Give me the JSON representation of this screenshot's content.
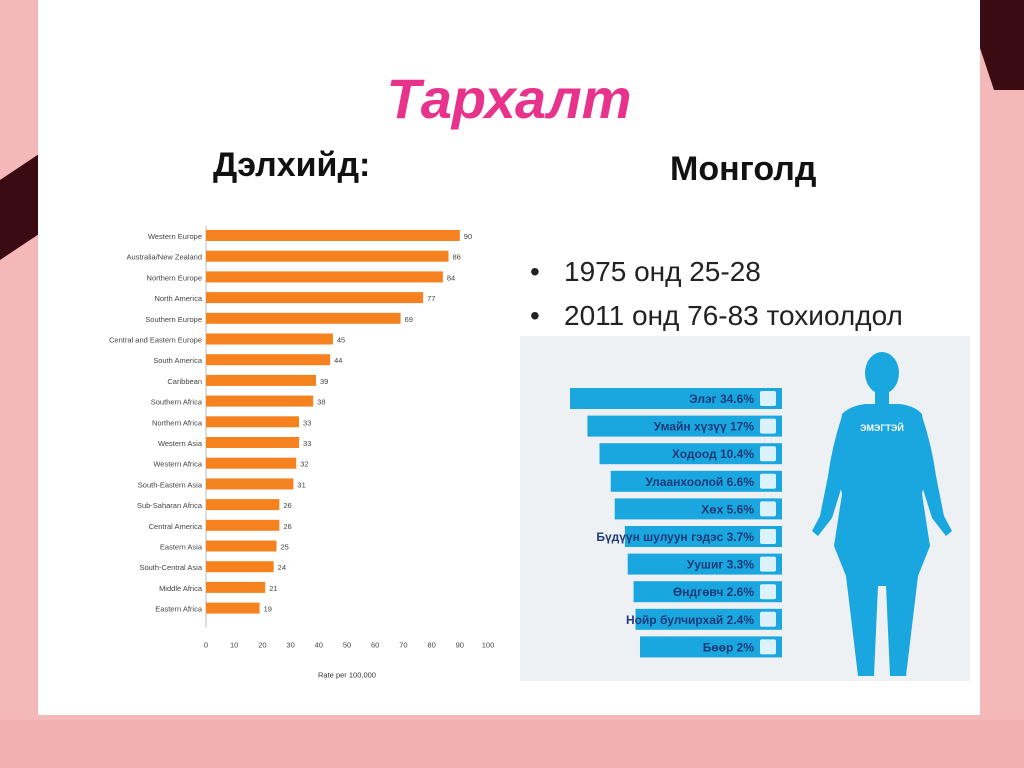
{
  "slide": {
    "title": "Тархалт",
    "left_heading": "Дэлхийд:",
    "right_heading": "Монголд",
    "bullets": [
      "1975 онд 25-28",
      "2011 онд 76-83 тохиолдол"
    ]
  },
  "colors": {
    "title": "#e8338c",
    "bar": "#f5821f",
    "mn_bar": "#1aa7e0",
    "background": "#f4b8b8",
    "corner": "#3a0b12"
  },
  "chart_data": [
    {
      "type": "bar",
      "orientation": "horizontal",
      "categories": [
        "Western Europe",
        "Australia/New Zealand",
        "Northern Europe",
        "North America",
        "Southern Europe",
        "Central and Eastern Europe",
        "South America",
        "Caribbean",
        "Southern Africa",
        "Northern Africa",
        "Western Asia",
        "Western Africa",
        "South-Eastern Asia",
        "Sub-Saharan Africa",
        "Central America",
        "Eastern Asia",
        "South-Central Asia",
        "Middle Africa",
        "Eastern Africa"
      ],
      "values": [
        90,
        86,
        84,
        77,
        69,
        45,
        44,
        39,
        38,
        33,
        33,
        32,
        31,
        26,
        26,
        25,
        24,
        21,
        19
      ],
      "xlabel": "Rate per 100,000",
      "xlim": [
        0,
        100
      ],
      "xticks": [
        0,
        10,
        20,
        30,
        40,
        50,
        60,
        70,
        80,
        90,
        100
      ],
      "grid": false,
      "legend": "none"
    },
    {
      "type": "bar",
      "orientation": "horizontal",
      "labels": [
        "Элэг 34.6%",
        "Умайн хүзүү 17%",
        "Ходоод 10.4%",
        "Улаанхоолой 6.6%",
        "Хөх 5.6%",
        "Бүдүүн шулуун гэдэс 3.7%",
        "Уушиг 3.3%",
        "Өндгөвч 2.6%",
        "Нойр булчирхай 2.4%",
        "Бөөр 2%"
      ],
      "values": [
        34.6,
        17,
        10.4,
        6.6,
        5.6,
        3.7,
        3.3,
        2.6,
        2.4,
        2
      ],
      "figure_label": "ЭМЭГТЭЙ",
      "icons": [
        "liver-icon",
        "cervix-icon",
        "stomach-icon",
        "esophagus-icon",
        "breast-icon",
        "colon-icon",
        "lungs-icon",
        "ovary-icon",
        "pancreas-icon",
        "kidney-icon"
      ]
    }
  ]
}
